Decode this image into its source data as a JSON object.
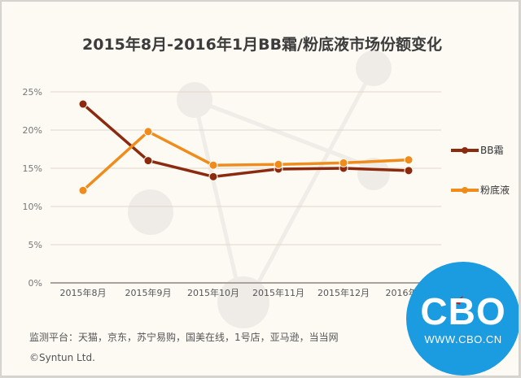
{
  "title": "2015年8月-2016年1月BB霜/粉底液市场份额变化",
  "legend": [
    {
      "label": "BB霜",
      "color": "#8b2a0e"
    },
    {
      "label": "粉底液",
      "color": "#ef8c1b"
    }
  ],
  "footer": {
    "platforms": "监测平台：天猫，京东，苏宁易购，国美在线，1号店，亚马逊，当当网",
    "copyright": "©Syntun Ltd."
  },
  "logo": {
    "name": "CBO",
    "url": "WWW.CBO.CN",
    "color": "#1b9be0"
  },
  "chart_data": {
    "type": "line",
    "title": "2015年8月-2016年1月BB霜/粉底液市场份额变化",
    "xlabel": "",
    "ylabel": "",
    "categories": [
      "2015年8月",
      "2015年9月",
      "2015年10月",
      "2015年11月",
      "2015年12月",
      "2016年1月"
    ],
    "y_ticks": [
      "0%",
      "5%",
      "10%",
      "15%",
      "20%",
      "25%"
    ],
    "ylim": [
      0,
      25
    ],
    "grid": true,
    "legend_position": "right",
    "series": [
      {
        "name": "BB霜",
        "color": "#8b2a0e",
        "values": [
          23.4,
          16.0,
          13.9,
          14.9,
          15.0,
          14.7
        ]
      },
      {
        "name": "粉底液",
        "color": "#ef8c1b",
        "values": [
          12.1,
          19.8,
          15.4,
          15.5,
          15.7,
          16.1
        ]
      }
    ]
  }
}
